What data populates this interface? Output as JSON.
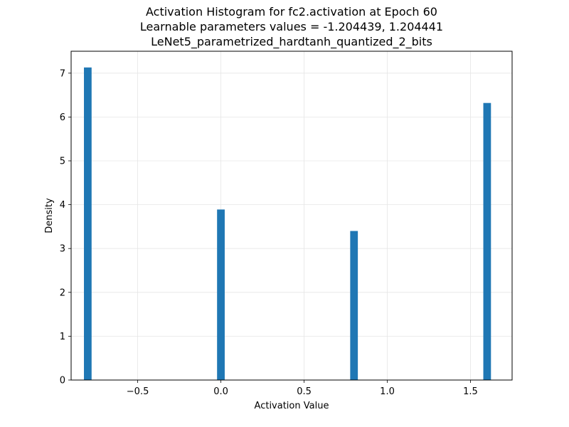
{
  "chart_data": {
    "type": "bar",
    "title_lines": [
      "Activation Histogram for fc2.activation at Epoch 60",
      "Learnable parameters values = -1.204439, 1.204441",
      "LeNet5_parametrized_hardtanh_quantized_2_bits"
    ],
    "xlabel": "Activation Value",
    "ylabel": "Density",
    "xlim": [
      -0.9,
      1.75
    ],
    "ylim": [
      0,
      7.5
    ],
    "x_ticks": [
      -0.5,
      0.0,
      0.5,
      1.0,
      1.5
    ],
    "x_tick_labels": [
      "−0.5",
      "0.0",
      "0.5",
      "1.0",
      "1.5"
    ],
    "y_ticks": [
      0,
      1,
      2,
      3,
      4,
      5,
      6,
      7
    ],
    "y_tick_labels": [
      "0",
      "1",
      "2",
      "3",
      "4",
      "5",
      "6",
      "7"
    ],
    "grid": true,
    "bar_color": "#1f77b4",
    "bin_width": 0.046,
    "bars": [
      {
        "x": -0.8,
        "value": 7.13
      },
      {
        "x": 0.0,
        "value": 3.89
      },
      {
        "x": 0.8,
        "value": 3.4
      },
      {
        "x": 1.6,
        "value": 6.32
      }
    ]
  }
}
